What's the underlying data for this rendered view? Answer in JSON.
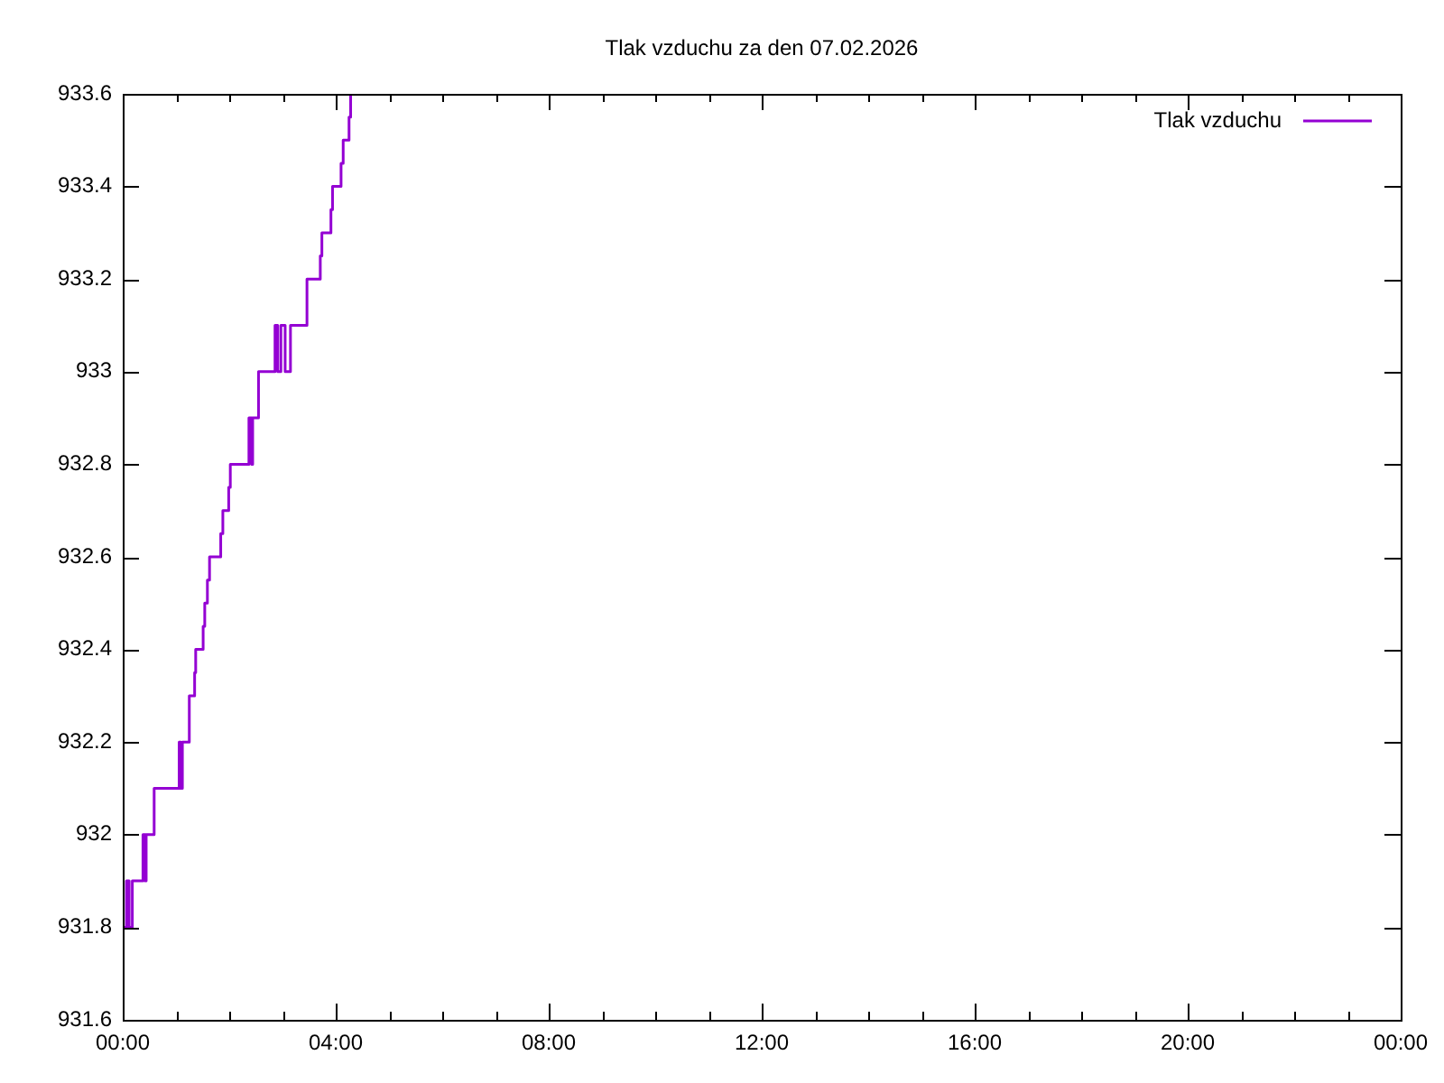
{
  "chart_data": {
    "type": "step",
    "title": "Tlak vzduchu za den 07.02.2026",
    "x": [
      0,
      0.07,
      0.12,
      0.18,
      0.38,
      0.42,
      0.44,
      0.59,
      1.06,
      1.09,
      1.12,
      1.25,
      1.35,
      1.37,
      1.51,
      1.54,
      1.59,
      1.63,
      1.84,
      1.88,
      1.99,
      2.02,
      2.37,
      2.42,
      2.44,
      2.55,
      2.86,
      2.91,
      2.97,
      3.05,
      3.15,
      3.46,
      3.71,
      3.74,
      3.91,
      3.94,
      4.1,
      4.14,
      4.25,
      4.28,
      4.3
    ],
    "series": [
      {
        "name": "Tlak vzduchu",
        "color": "#9400d3",
        "values": [
          931.8,
          931.9,
          931.8,
          931.9,
          932.0,
          931.9,
          932.0,
          932.1,
          932.2,
          932.1,
          932.2,
          932.3,
          932.35,
          932.4,
          932.45,
          932.5,
          932.55,
          932.6,
          932.65,
          932.7,
          932.75,
          932.8,
          932.9,
          932.8,
          932.9,
          933.0,
          933.1,
          933.0,
          933.1,
          933.0,
          933.1,
          933.2,
          933.25,
          933.3,
          933.35,
          933.4,
          933.45,
          933.5,
          933.55,
          933.6,
          933.6
        ]
      }
    ],
    "xlim": [
      0,
      24
    ],
    "xticks": [
      {
        "value": 0,
        "label": "00:00"
      },
      {
        "value": 1,
        "label": null
      },
      {
        "value": 2,
        "label": null
      },
      {
        "value": 3,
        "label": null
      },
      {
        "value": 4,
        "label": "04:00"
      },
      {
        "value": 5,
        "label": null
      },
      {
        "value": 6,
        "label": null
      },
      {
        "value": 7,
        "label": null
      },
      {
        "value": 8,
        "label": "08:00"
      },
      {
        "value": 9,
        "label": null
      },
      {
        "value": 10,
        "label": null
      },
      {
        "value": 11,
        "label": null
      },
      {
        "value": 12,
        "label": "12:00"
      },
      {
        "value": 13,
        "label": null
      },
      {
        "value": 14,
        "label": null
      },
      {
        "value": 15,
        "label": null
      },
      {
        "value": 16,
        "label": "16:00"
      },
      {
        "value": 17,
        "label": null
      },
      {
        "value": 18,
        "label": null
      },
      {
        "value": 19,
        "label": null
      },
      {
        "value": 20,
        "label": "20:00"
      },
      {
        "value": 21,
        "label": null
      },
      {
        "value": 22,
        "label": null
      },
      {
        "value": 23,
        "label": null
      },
      {
        "value": 24,
        "label": "00:00"
      }
    ],
    "ylim": [
      931.6,
      933.6
    ],
    "yticks": [
      931.6,
      931.8,
      932,
      932.2,
      932.4,
      932.6,
      932.8,
      933,
      933.2,
      933.4,
      933.6
    ],
    "legend": "top right"
  }
}
